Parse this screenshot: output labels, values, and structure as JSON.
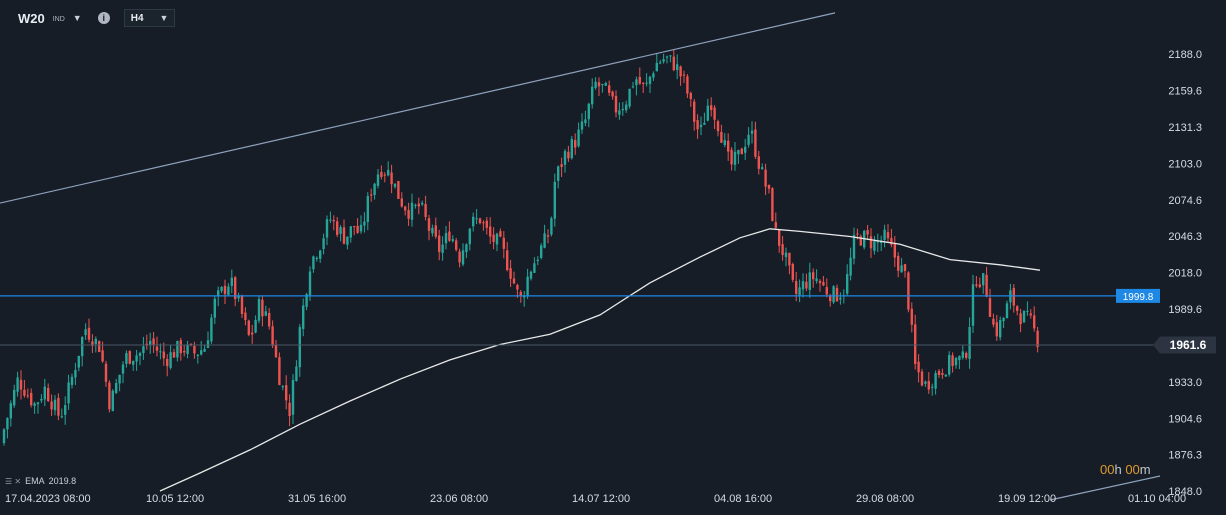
{
  "toolbar": {
    "symbol": "W20",
    "symbol_suffix": "IND",
    "timeframe": "H4"
  },
  "indicator": {
    "label": "EMA",
    "value": "2019.8"
  },
  "countdown": {
    "hours": "00",
    "hours_unit": "h",
    "minutes": "00",
    "minutes_unit": "m"
  },
  "price_labels": {
    "current": "1961.6",
    "horizontal_line": "1999.8"
  },
  "colors": {
    "background": "#161d26",
    "bull": "#26a69a",
    "bear": "#ef5350",
    "trendline": "#8ea2bd",
    "horizontal_line": "#1e88e5",
    "ema": "#e8e8e8",
    "current_label_bg": "#2b3440",
    "countdown": "#e09a2b"
  },
  "chart_data": {
    "type": "candlestick",
    "instrument": "W20",
    "timeframe": "H4",
    "y_ticks": [
      "2188.0",
      "2159.6",
      "2131.3",
      "2103.0",
      "2074.6",
      "2046.3",
      "2018.0",
      "1989.6",
      "1961.6",
      "1933.0",
      "1904.6",
      "1876.3",
      "1848.0"
    ],
    "x_ticks": [
      "17.04.2023 08:00",
      "10.05 12:00",
      "31.05 16:00",
      "23.06 08:00",
      "14.07 12:00",
      "04.08 16:00",
      "29.08 08:00",
      "19.09 12:00",
      "01.10 04:00"
    ],
    "ylim": [
      1848.0,
      2188.0
    ],
    "current_price": 1961.6,
    "horizontal_line": 1999.8,
    "close_path": [
      [
        0,
        1885
      ],
      [
        18,
        1935
      ],
      [
        35,
        1915
      ],
      [
        45,
        1928
      ],
      [
        60,
        1905
      ],
      [
        70,
        1930
      ],
      [
        85,
        1975
      ],
      [
        100,
        1960
      ],
      [
        110,
        1915
      ],
      [
        125,
        1952
      ],
      [
        140,
        1955
      ],
      [
        150,
        1965
      ],
      [
        165,
        1950
      ],
      [
        180,
        1960
      ],
      [
        195,
        1955
      ],
      [
        205,
        1960
      ],
      [
        215,
        1995
      ],
      [
        230,
        2012
      ],
      [
        240,
        1990
      ],
      [
        250,
        1965
      ],
      [
        260,
        1995
      ],
      [
        270,
        1975
      ],
      [
        280,
        1935
      ],
      [
        290,
        1910
      ],
      [
        300,
        1975
      ],
      [
        310,
        2025
      ],
      [
        320,
        2040
      ],
      [
        330,
        2060
      ],
      [
        345,
        2045
      ],
      [
        355,
        2055
      ],
      [
        360,
        2045
      ],
      [
        370,
        2080
      ],
      [
        380,
        2100
      ],
      [
        390,
        2095
      ],
      [
        400,
        2075
      ],
      [
        410,
        2065
      ],
      [
        420,
        2070
      ],
      [
        430,
        2050
      ],
      [
        440,
        2035
      ],
      [
        450,
        2050
      ],
      [
        460,
        2030
      ],
      [
        470,
        2055
      ],
      [
        480,
        2060
      ],
      [
        490,
        2045
      ],
      [
        500,
        2040
      ],
      [
        510,
        2020
      ],
      [
        520,
        1995
      ],
      [
        530,
        2020
      ],
      [
        540,
        2035
      ],
      [
        550,
        2050
      ],
      [
        555,
        2090
      ],
      [
        565,
        2110
      ],
      [
        575,
        2120
      ],
      [
        585,
        2135
      ],
      [
        595,
        2165
      ],
      [
        605,
        2160
      ],
      [
        615,
        2145
      ],
      [
        625,
        2150
      ],
      [
        635,
        2170
      ],
      [
        645,
        2160
      ],
      [
        655,
        2180
      ],
      [
        665,
        2185
      ],
      [
        675,
        2180
      ],
      [
        685,
        2165
      ],
      [
        695,
        2135
      ],
      [
        700,
        2125
      ],
      [
        710,
        2155
      ],
      [
        715,
        2140
      ],
      [
        720,
        2130
      ],
      [
        730,
        2100
      ],
      [
        740,
        2110
      ],
      [
        750,
        2130
      ],
      [
        760,
        2100
      ],
      [
        770,
        2075
      ],
      [
        775,
        2050
      ],
      [
        785,
        2030
      ],
      [
        795,
        2000
      ],
      [
        805,
        2010
      ],
      [
        815,
        2015
      ],
      [
        825,
        2005
      ],
      [
        835,
        2000
      ],
      [
        845,
        2005
      ],
      [
        855,
        2045
      ],
      [
        865,
        2045
      ],
      [
        875,
        2040
      ],
      [
        885,
        2045
      ],
      [
        895,
        2030
      ],
      [
        905,
        2015
      ],
      [
        910,
        1985
      ],
      [
        915,
        1945
      ],
      [
        925,
        1930
      ],
      [
        935,
        1938
      ],
      [
        945,
        1945
      ],
      [
        955,
        1950
      ],
      [
        965,
        1950
      ],
      [
        975,
        2015
      ],
      [
        985,
        2010
      ],
      [
        995,
        1970
      ],
      [
        1005,
        1985
      ],
      [
        1010,
        2000
      ],
      [
        1020,
        1985
      ],
      [
        1030,
        1980
      ],
      [
        1040,
        1961.6
      ]
    ],
    "ema_path": [
      [
        160,
        1848
      ],
      [
        200,
        1862
      ],
      [
        250,
        1880
      ],
      [
        300,
        1900
      ],
      [
        350,
        1918
      ],
      [
        400,
        1935
      ],
      [
        450,
        1950
      ],
      [
        500,
        1962
      ],
      [
        550,
        1970
      ],
      [
        600,
        1985
      ],
      [
        650,
        2010
      ],
      [
        700,
        2030
      ],
      [
        740,
        2045
      ],
      [
        770,
        2052
      ],
      [
        800,
        2050
      ],
      [
        850,
        2046
      ],
      [
        900,
        2040
      ],
      [
        950,
        2028
      ],
      [
        1000,
        2024
      ],
      [
        1040,
        2019.8
      ]
    ],
    "trendline": [
      [
        0,
        2072
      ],
      [
        835,
        2220
      ]
    ]
  }
}
